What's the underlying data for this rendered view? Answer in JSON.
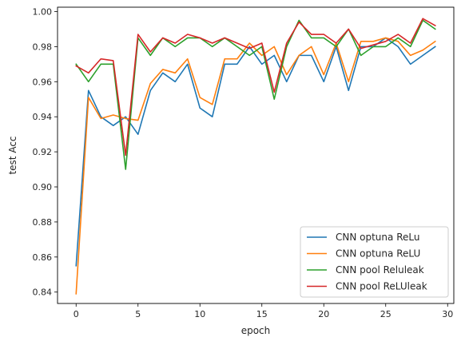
{
  "chart_data": {
    "type": "line",
    "title": "",
    "xlabel": "epoch",
    "ylabel": "test Acc",
    "xlim": [
      -1.5,
      30.5
    ],
    "ylim": [
      0.8335,
      1.0025
    ],
    "x_ticks": [
      0,
      5,
      10,
      15,
      20,
      25,
      30
    ],
    "y_ticks": [
      0.84,
      0.86,
      0.88,
      0.9,
      0.92,
      0.94,
      0.96,
      0.98,
      1.0
    ],
    "x_tick_labels": [
      "0",
      "5",
      "10",
      "15",
      "20",
      "25",
      "30"
    ],
    "y_tick_labels": [
      "0.84",
      "0.86",
      "0.88",
      "0.90",
      "0.92",
      "0.94",
      "0.96",
      "0.98",
      "1.00"
    ],
    "grid": false,
    "legend_position": "lower-right",
    "x": [
      0,
      1,
      2,
      3,
      4,
      5,
      6,
      7,
      8,
      9,
      10,
      11,
      12,
      13,
      14,
      15,
      16,
      17,
      18,
      19,
      20,
      21,
      22,
      23,
      24,
      25,
      26,
      27,
      28,
      29
    ],
    "series": [
      {
        "name": "CNN optuna ReLu",
        "color": "#1f77b4",
        "values": [
          0.855,
          0.955,
          0.94,
          0.935,
          0.94,
          0.93,
          0.955,
          0.965,
          0.96,
          0.97,
          0.945,
          0.94,
          0.97,
          0.97,
          0.98,
          0.97,
          0.975,
          0.96,
          0.975,
          0.975,
          0.96,
          0.98,
          0.955,
          0.98,
          0.98,
          0.985,
          0.98,
          0.97,
          0.975,
          0.98
        ]
      },
      {
        "name": "CNN optuna ReLU",
        "color": "#ff7f0e",
        "values": [
          0.839,
          0.951,
          0.939,
          0.941,
          0.939,
          0.938,
          0.959,
          0.967,
          0.965,
          0.973,
          0.951,
          0.947,
          0.973,
          0.973,
          0.982,
          0.975,
          0.98,
          0.964,
          0.975,
          0.98,
          0.964,
          0.982,
          0.96,
          0.983,
          0.983,
          0.985,
          0.983,
          0.975,
          0.978,
          0.983
        ]
      },
      {
        "name": "CNN pool Reluleak",
        "color": "#2ca02c",
        "values": [
          0.97,
          0.96,
          0.97,
          0.97,
          0.91,
          0.985,
          0.975,
          0.985,
          0.98,
          0.985,
          0.985,
          0.98,
          0.985,
          0.98,
          0.975,
          0.98,
          0.95,
          0.98,
          0.995,
          0.985,
          0.985,
          0.98,
          0.99,
          0.975,
          0.98,
          0.98,
          0.985,
          0.98,
          0.995,
          0.99
        ]
      },
      {
        "name": "CNN pool ReLUleak",
        "color": "#d62728",
        "values": [
          0.969,
          0.965,
          0.973,
          0.972,
          0.918,
          0.987,
          0.977,
          0.985,
          0.982,
          0.987,
          0.985,
          0.982,
          0.985,
          0.982,
          0.979,
          0.982,
          0.954,
          0.982,
          0.994,
          0.987,
          0.987,
          0.982,
          0.99,
          0.979,
          0.981,
          0.983,
          0.987,
          0.982,
          0.996,
          0.992
        ]
      }
    ]
  }
}
